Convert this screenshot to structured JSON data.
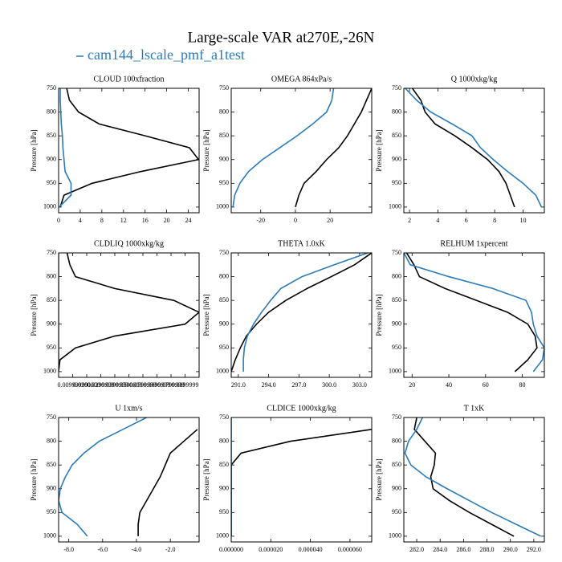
{
  "title": "Large-scale VAR at270E,-26N",
  "legend": {
    "name": "cam144_lscale_pmf_a1test",
    "color": "#2b7bb9"
  },
  "chart_data": [
    {
      "type": "line",
      "title": "CLOUD  100xfraction",
      "ylabel": "Pressure [hPa]",
      "yreverse": true,
      "y": [
        750,
        775,
        800,
        825,
        850,
        875,
        900,
        925,
        950,
        975,
        1000
      ],
      "xlim": [
        0,
        26
      ],
      "xticks": [
        0,
        4,
        8,
        12,
        16,
        20,
        24
      ],
      "ylim": [
        750,
        1012
      ],
      "yticks": [
        750,
        800,
        850,
        900,
        950,
        1000
      ],
      "series": [
        {
          "color": "#000000",
          "values": [
            1.5,
            2,
            3.7,
            7.5,
            16,
            24.2,
            25.9,
            15.3,
            6.2,
            1,
            0.3
          ]
        },
        {
          "color": "#2b7bb9",
          "values": [
            0.3,
            0.3,
            0.4,
            0.5,
            0.7,
            0.8,
            1,
            1.2,
            2.3,
            2.3,
            0.1
          ]
        }
      ]
    },
    {
      "type": "line",
      "title": "OMEGA  864xPa/s",
      "ylabel": "Pressure [hPa]",
      "yreverse": true,
      "y": [
        750,
        775,
        800,
        825,
        850,
        875,
        900,
        925,
        950,
        975,
        1000
      ],
      "xlim": [
        -37,
        44
      ],
      "xticks": [
        -20,
        0,
        20
      ],
      "ylim": [
        750,
        1012
      ],
      "yticks": [
        750,
        800,
        850,
        900,
        950,
        1000
      ],
      "series": [
        {
          "color": "#000000",
          "values": [
            44,
            41,
            38,
            34,
            30,
            25,
            18,
            12,
            5,
            2,
            0
          ]
        },
        {
          "color": "#2b7bb9",
          "values": [
            22,
            21,
            18,
            10,
            1,
            -9,
            -19,
            -27,
            -32,
            -35,
            -36
          ]
        }
      ]
    },
    {
      "type": "line",
      "title": "Q  1000xkg/kg",
      "ylabel": "Pressure [hPa]",
      "yreverse": true,
      "y": [
        750,
        775,
        800,
        825,
        850,
        875,
        900,
        925,
        950,
        975,
        1000
      ],
      "xlim": [
        1.6,
        11.5
      ],
      "xticks": [
        2,
        4,
        6,
        8,
        10
      ],
      "ylim": [
        750,
        1012
      ],
      "yticks": [
        750,
        800,
        850,
        900,
        950,
        1000
      ],
      "series": [
        {
          "color": "#000000",
          "values": [
            2.2,
            2.8,
            3.1,
            3.8,
            5.2,
            6.4,
            7.5,
            8.3,
            8.8,
            9.1,
            9.4
          ]
        },
        {
          "color": "#2b7bb9",
          "values": [
            1.7,
            2.5,
            3.5,
            5.0,
            6.4,
            7.0,
            7.9,
            8.9,
            10.0,
            10.9,
            11.3
          ]
        }
      ]
    },
    {
      "type": "line",
      "title": "CLDLIQ  1000xkg/kg",
      "ylabel": "Pressure [hPa]",
      "yreverse": true,
      "y": [
        750,
        775,
        800,
        825,
        850,
        875,
        900,
        925,
        950,
        975,
        1000
      ],
      "xlim": [
        0,
        0.1
      ],
      "xticks": [
        {
          "value": 0.01,
          "label": "0.00999999"
        },
        {
          "value": 0.02,
          "label": "0.0200000"
        },
        {
          "value": 0.03,
          "label": "0.0299999"
        },
        {
          "value": 0.04,
          "label": "0.0399999"
        },
        {
          "value": 0.05,
          "label": "0.0500000"
        },
        {
          "value": 0.06,
          "label": "0.0599999"
        },
        {
          "value": 0.07,
          "label": "0.0699999"
        },
        {
          "value": 0.08,
          "label": "0.0799999"
        },
        {
          "value": 0.09,
          "label": "0.0899999"
        }
      ],
      "ylim": [
        750,
        1012
      ],
      "yticks": [
        750,
        800,
        850,
        900,
        950,
        1000
      ],
      "series": [
        {
          "color": "#000000",
          "values": [
            0.006,
            0.008,
            0.012,
            0.04,
            0.082,
            0.1,
            0.09,
            0.04,
            0.012,
            0.001,
            0
          ]
        },
        {
          "color": "#2b7bb9",
          "values": [
            0,
            0,
            0,
            0,
            0,
            0,
            0,
            0,
            0,
            0,
            0
          ]
        }
      ]
    },
    {
      "type": "line",
      "title": "THETA  1.0xK",
      "ylabel": "Pressure [hPa]",
      "yreverse": true,
      "y": [
        750,
        775,
        800,
        825,
        850,
        875,
        900,
        925,
        950,
        975,
        1000
      ],
      "xlim": [
        290.3,
        304.2
      ],
      "xticks": [
        {
          "value": 291,
          "label": "291.0"
        },
        {
          "value": 294,
          "label": "294.0"
        },
        {
          "value": 297,
          "label": "297.0"
        },
        {
          "value": 300,
          "label": "300.0"
        },
        {
          "value": 303,
          "label": "303.0"
        }
      ],
      "ylim": [
        750,
        1012
      ],
      "yticks": [
        750,
        800,
        850,
        900,
        950,
        1000
      ],
      "series": [
        {
          "color": "#000000",
          "values": [
            304.2,
            302.5,
            300.2,
            297.8,
            295.7,
            294,
            292.8,
            291.8,
            291.2,
            290.7,
            290.3
          ]
        },
        {
          "color": "#2b7bb9",
          "values": [
            303.8,
            300.5,
            297.3,
            295.2,
            294.2,
            293.3,
            292.5,
            291.9,
            291.6,
            291.5,
            291.5
          ]
        }
      ]
    },
    {
      "type": "line",
      "title": "RELHUM  1xpercent",
      "ylabel": "Pressure [hPa]",
      "yreverse": true,
      "y": [
        750,
        775,
        800,
        825,
        850,
        875,
        900,
        925,
        950,
        975,
        1000
      ],
      "xlim": [
        15.5,
        92
      ],
      "xticks": [
        20,
        40,
        60,
        80
      ],
      "ylim": [
        750,
        1012
      ],
      "yticks": [
        750,
        800,
        850,
        900,
        950,
        1000
      ],
      "series": [
        {
          "color": "#000000",
          "values": [
            17,
            21,
            24,
            38,
            55,
            72,
            83,
            87,
            88,
            83,
            76
          ]
        },
        {
          "color": "#2b7bb9",
          "values": [
            15.5,
            19,
            40,
            64,
            82,
            85,
            86,
            88,
            92,
            91,
            86
          ]
        }
      ]
    },
    {
      "type": "line",
      "title": "U  1xm/s",
      "ylabel": "Pressure [hPa]",
      "yreverse": true,
      "y": [
        750,
        775,
        800,
        825,
        850,
        875,
        900,
        925,
        950,
        975,
        1000
      ],
      "xlim": [
        -8.6,
        -0.3
      ],
      "xticks": [
        {
          "value": -8,
          "label": "-8.0"
        },
        {
          "value": -6,
          "label": "-6.0"
        },
        {
          "value": -4,
          "label": "-4.0"
        },
        {
          "value": -2,
          "label": "-2.0"
        }
      ],
      "ylim": [
        750,
        1012
      ],
      "yticks": [
        750,
        800,
        850,
        900,
        950,
        1000
      ],
      "series": [
        {
          "color": "#000000",
          "values": [
            null,
            -0.4,
            -1.2,
            -2.0,
            -2.3,
            -2.6,
            -3.0,
            -3.4,
            -3.8,
            -3.9,
            -3.9
          ]
        },
        {
          "color": "#2b7bb9",
          "values": [
            -3.4,
            -4.8,
            -6.2,
            -7.1,
            -7.8,
            -8.2,
            -8.5,
            -8.6,
            -8.4,
            -7.5,
            -6.9
          ]
        }
      ]
    },
    {
      "type": "line",
      "title": "CLDICE  1000xkg/kg",
      "ylabel": "Pressure [hPa]",
      "yreverse": true,
      "y": [
        750,
        775,
        800,
        825,
        850,
        875,
        900,
        925,
        950,
        975,
        1000
      ],
      "xlim": [
        0,
        7.1e-05
      ],
      "xticks": [
        {
          "value": 0,
          "label": "0.000000"
        },
        {
          "value": 2e-05,
          "label": "0.000020"
        },
        {
          "value": 4e-05,
          "label": "0.000040"
        },
        {
          "value": 6e-05,
          "label": "0.000060"
        }
      ],
      "ylim": [
        750,
        1012
      ],
      "yticks": [
        750,
        800,
        850,
        900,
        950,
        1000
      ],
      "series": [
        {
          "color": "#000000",
          "values": [
            null,
            7.1e-05,
            3e-05,
            5e-06,
            0,
            0,
            0,
            0,
            0,
            0,
            0
          ]
        },
        {
          "color": "#2b7bb9",
          "values": [
            0,
            0,
            0,
            0,
            0,
            0,
            0,
            0,
            0,
            0,
            0
          ]
        }
      ]
    },
    {
      "type": "line",
      "title": "T  1xK",
      "ylabel": "Pressure [hPa]",
      "yreverse": true,
      "y": [
        750,
        775,
        800,
        825,
        850,
        875,
        900,
        925,
        950,
        975,
        1000
      ],
      "xlim": [
        280.9,
        292.9
      ],
      "xticks": [
        {
          "value": 282,
          "label": "282.0"
        },
        {
          "value": 284,
          "label": "284.0"
        },
        {
          "value": 286,
          "label": "286.0"
        },
        {
          "value": 288,
          "label": "288.0"
        },
        {
          "value": 290,
          "label": "290.0"
        },
        {
          "value": 292,
          "label": "292.0"
        }
      ],
      "ylim": [
        750,
        1012
      ],
      "yticks": [
        750,
        800,
        850,
        900,
        950,
        1000
      ],
      "series": [
        {
          "color": "#000000",
          "values": [
            282.0,
            281.8,
            282.7,
            283.6,
            283.5,
            283.2,
            283.4,
            284.8,
            286.5,
            288.4,
            290.3
          ]
        },
        {
          "color": "#2b7bb9",
          "values": [
            282.5,
            282.0,
            281.3,
            281.0,
            281.5,
            282.8,
            284.6,
            286.5,
            288.4,
            290.5,
            292.6
          ]
        }
      ]
    }
  ]
}
